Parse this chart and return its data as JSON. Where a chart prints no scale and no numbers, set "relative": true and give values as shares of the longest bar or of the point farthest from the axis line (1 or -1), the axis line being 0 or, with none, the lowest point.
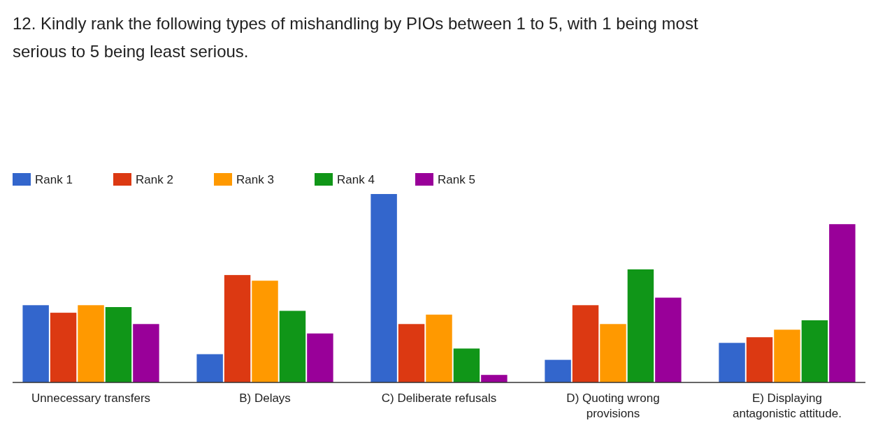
{
  "chart_data": {
    "type": "bar",
    "title": "12. Kindly rank the following types of mishandling by PIOs between 1 to 5, with 1 being most serious to 5 being least serious.",
    "categories": [
      "Unnecessary transfers",
      "B) Delays",
      "C) Deliberate refusals",
      "D) Quoting wrong provisions",
      "E) Displaying antagonistic attitude."
    ],
    "relative": true,
    "legend": "top left",
    "series": [
      {
        "name": "Rank 1",
        "color": "#3366cc",
        "values": [
          0.41,
          0.15,
          1,
          0.12,
          0.21
        ]
      },
      {
        "name": "Rank 2",
        "color": "#dc3912",
        "values": [
          0.37,
          0.57,
          0.31,
          0.41,
          0.24
        ]
      },
      {
        "name": "Rank 3",
        "color": "#ff9900",
        "values": [
          0.41,
          0.54,
          0.36,
          0.31,
          0.28
        ]
      },
      {
        "name": "Rank 4",
        "color": "#109618",
        "values": [
          0.4,
          0.38,
          0.18,
          0.6,
          0.33
        ]
      },
      {
        "name": "Rank 5",
        "color": "#990099",
        "values": [
          0.31,
          0.26,
          0.04,
          0.45,
          0.84
        ]
      }
    ]
  }
}
